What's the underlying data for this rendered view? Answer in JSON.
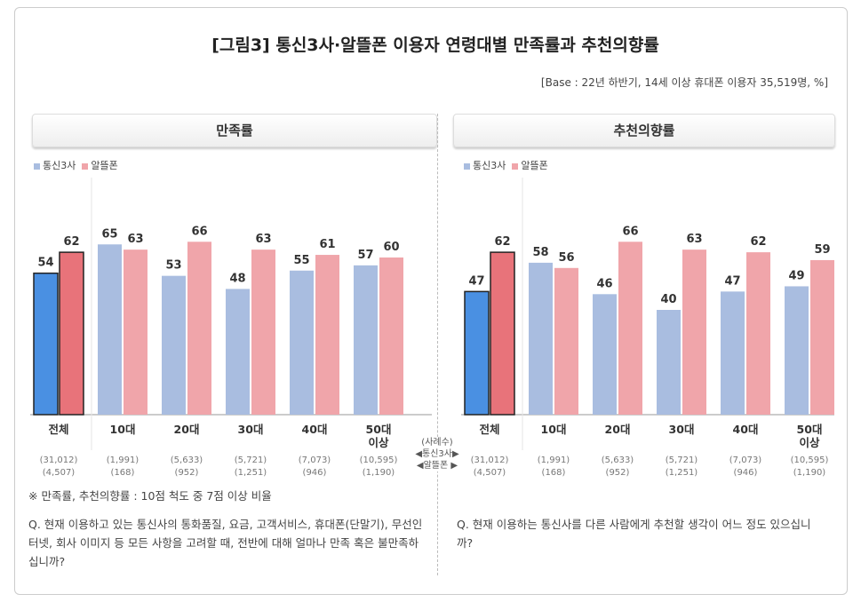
{
  "title": "[그림3] 통신3사·알뜰폰 이용자 연령대별 만족률과 추천의향률",
  "base": "[Base : 22년 하반기, 14세 이상 휴대폰 이용자 35,519명, %]",
  "sample_label": "(사례수)",
  "sample_row1": "◀통신3사▶",
  "sample_row2": "◀알뜰폰 ▶",
  "footnote": "※ 만족률, 추천의향률 : 10점 척도 중 7점 이상 비율",
  "question_left": "Q. 현재 이용하고 있는 통신사의 통화품질, 요금, 고객서비스, 휴대폰(단말기), 무선인터넷, 회사 이미지 등 모든 사항을 고려할 때, 전반에 대해 얼마나 만족 혹은 불만족하십니까?",
  "question_right": "Q. 현재 이용하는 통신사를 다른 사람에게 추천할 생각이 어느 정도 있으십니까?",
  "colors": {
    "telco_total": "#4a90e2",
    "mvno_total": "#e8737a",
    "telco": "#a9bde0",
    "mvno": "#f0a5aa"
  },
  "chart_data": [
    {
      "type": "bar",
      "title": "만족률",
      "categories": [
        "전체",
        "10대",
        "20대",
        "30대",
        "40대",
        "50대\n이상"
      ],
      "samples_telco": [
        "(31,012)",
        "(1,991)",
        "(5,633)",
        "(5,721)",
        "(7,073)",
        "(10,595)"
      ],
      "samples_mvno": [
        "(4,507)",
        "(168)",
        "(952)",
        "(1,251)",
        "(946)",
        "(1,190)"
      ],
      "series": [
        {
          "name": "통신3사",
          "values": [
            54,
            65,
            53,
            48,
            55,
            57
          ]
        },
        {
          "name": "알뜰폰",
          "values": [
            62,
            63,
            66,
            63,
            61,
            60
          ]
        }
      ],
      "legend": "top-left",
      "grid": false
    },
    {
      "type": "bar",
      "title": "추천의향률",
      "categories": [
        "전체",
        "10대",
        "20대",
        "30대",
        "40대",
        "50대\n이상"
      ],
      "samples_telco": [
        "(31,012)",
        "(1,991)",
        "(5,633)",
        "(5,721)",
        "(7,073)",
        "(10,595)"
      ],
      "samples_mvno": [
        "(4,507)",
        "(168)",
        "(952)",
        "(1,251)",
        "(946)",
        "(1,190)"
      ],
      "series": [
        {
          "name": "통신3사",
          "values": [
            47,
            58,
            46,
            40,
            47,
            49
          ]
        },
        {
          "name": "알뜰폰",
          "values": [
            62,
            56,
            66,
            63,
            62,
            59
          ]
        }
      ],
      "legend": "top-left",
      "grid": false
    }
  ]
}
